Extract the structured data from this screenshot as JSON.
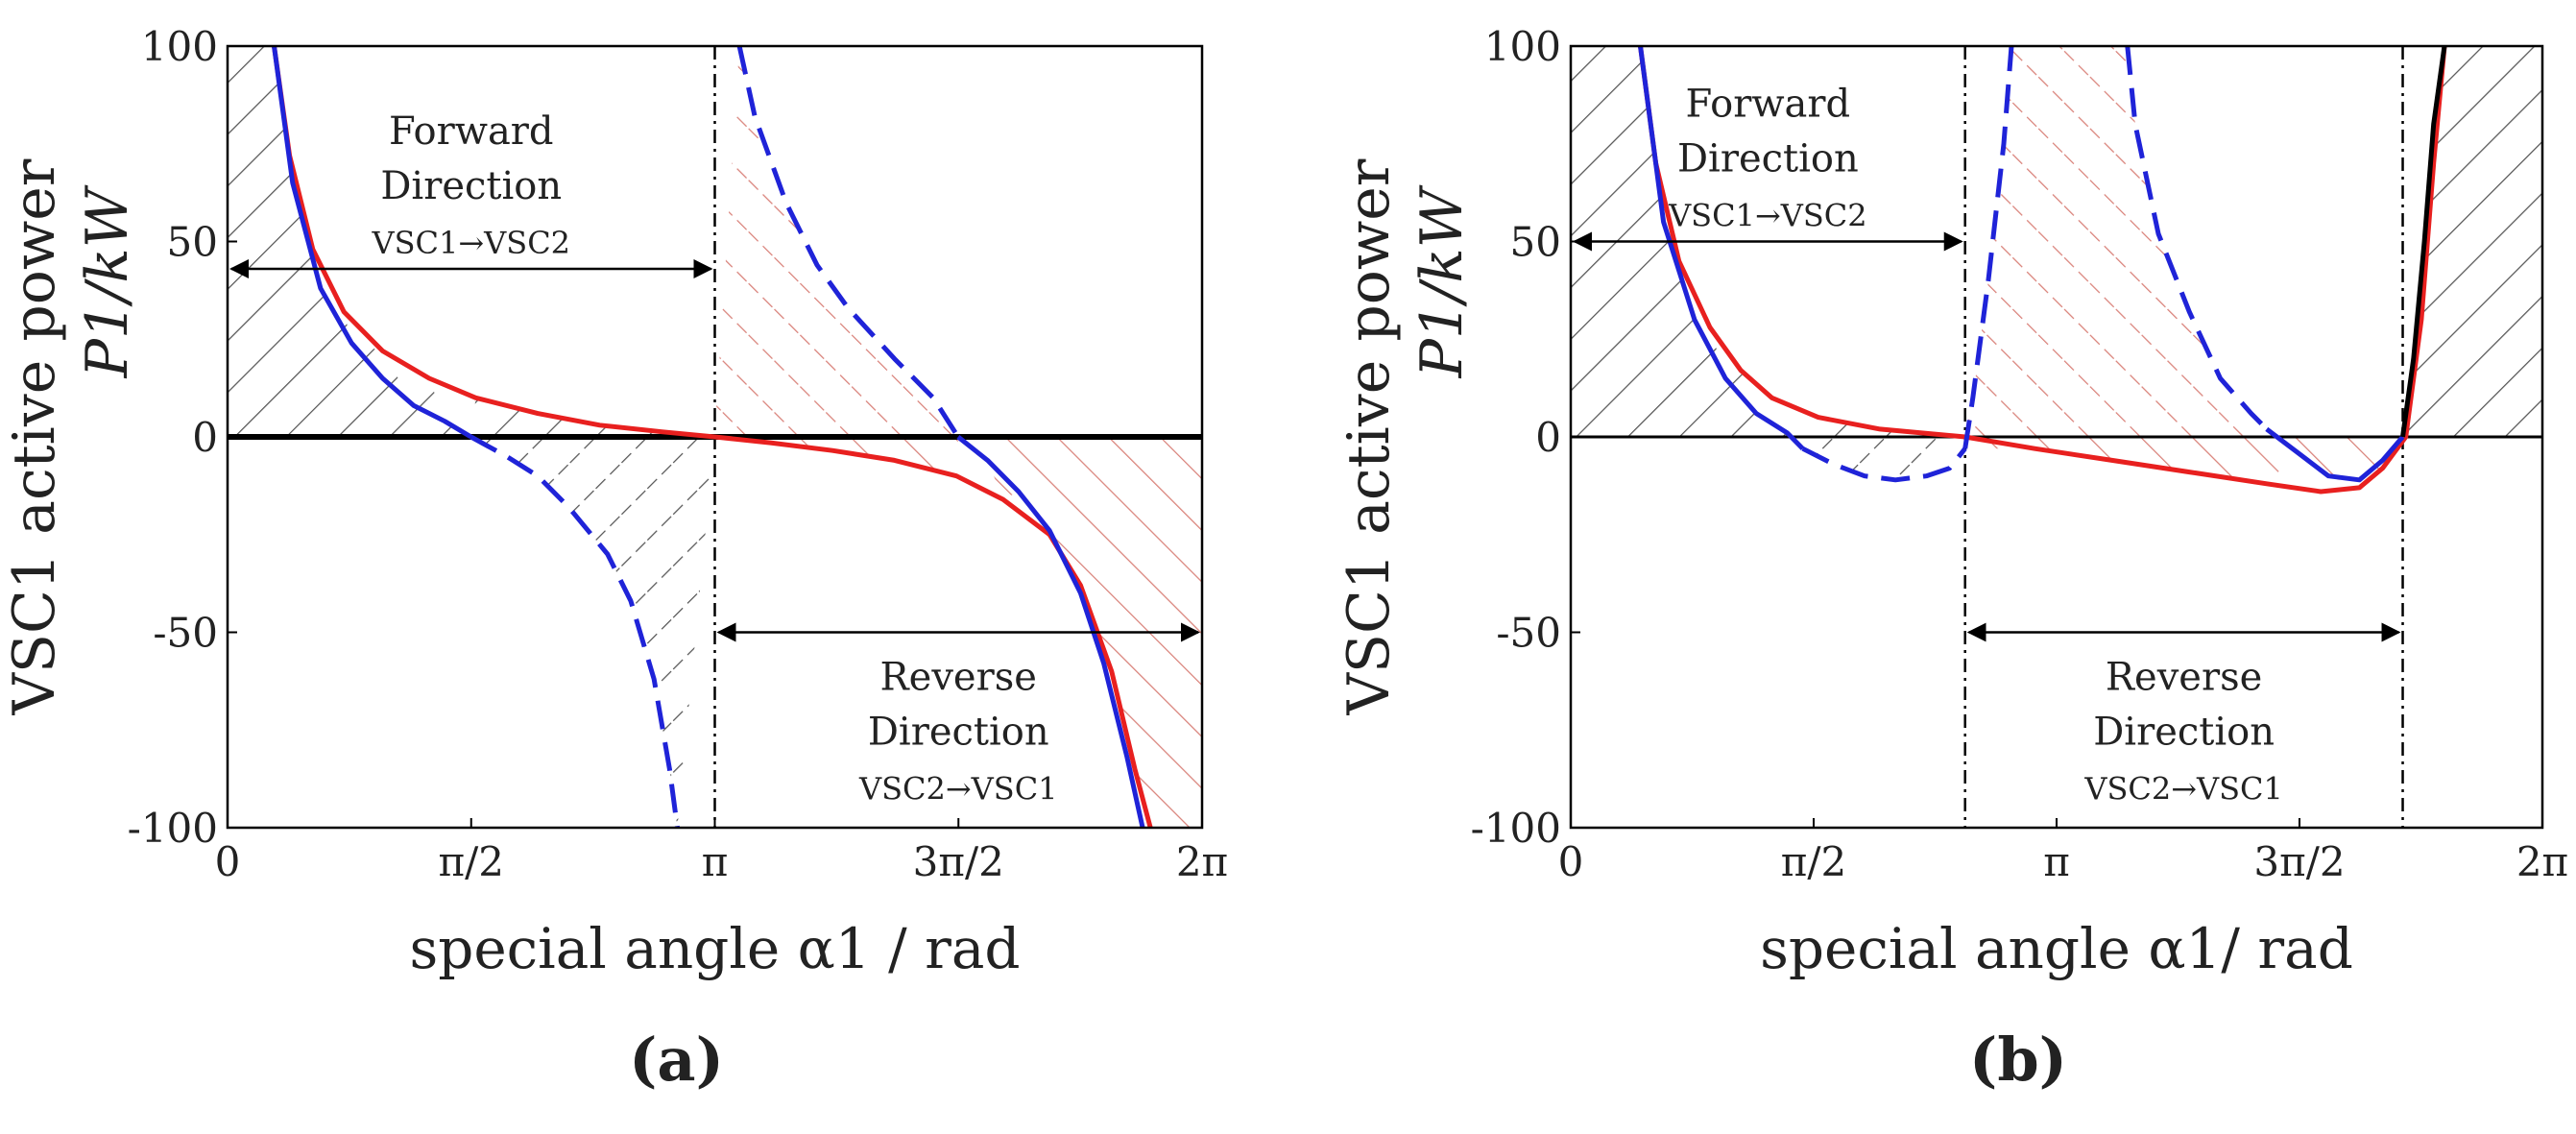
{
  "chart_data": [
    {
      "type": "area",
      "panel": "(a)",
      "xlabel": "special angle α1 / rad",
      "ylabel_line1": "VSC1 active power",
      "ylabel_line2": "P1/kW",
      "xlim": [
        0,
        6.2832
      ],
      "ylim": [
        -100,
        100
      ],
      "x_ticks": [
        "0",
        "π/2",
        "π",
        "3π/2",
        "2π"
      ],
      "y_ticks": [
        "100",
        "50",
        "0",
        "-50",
        "-100"
      ],
      "grid": false,
      "series": [
        {
          "color": "#e8201f",
          "style": "solid",
          "points": [
            [
              0.3,
              100
            ],
            [
              0.4,
              72
            ],
            [
              0.55,
              48
            ],
            [
              0.75,
              32
            ],
            [
              1.0,
              22
            ],
            [
              1.3,
              15
            ],
            [
              1.6,
              10
            ],
            [
              2.0,
              6
            ],
            [
              2.4,
              3
            ],
            [
              2.8,
              1.3
            ],
            [
              3.1416,
              0
            ],
            [
              3.5,
              -1.5
            ],
            [
              3.9,
              -3.5
            ],
            [
              4.3,
              -6
            ],
            [
              4.7,
              -10
            ],
            [
              5.0,
              -16
            ],
            [
              5.3,
              -25
            ],
            [
              5.5,
              -38
            ],
            [
              5.7,
              -60
            ],
            [
              5.85,
              -85
            ],
            [
              5.95,
              -100
            ]
          ]
        },
        {
          "color": "#1f23d8",
          "style": "solid",
          "points": [
            [
              0.3,
              100
            ],
            [
              0.42,
              65
            ],
            [
              0.6,
              38
            ],
            [
              0.8,
              24
            ],
            [
              1.0,
              15
            ],
            [
              1.2,
              8
            ],
            [
              1.4,
              4
            ],
            [
              1.57,
              0
            ]
          ]
        },
        {
          "color": "#1f23d8",
          "style": "dashed",
          "points": [
            [
              1.57,
              0
            ],
            [
              1.8,
              -5
            ],
            [
              2.0,
              -10
            ],
            [
              2.2,
              -18
            ],
            [
              2.45,
              -30
            ],
            [
              2.6,
              -42
            ],
            [
              2.75,
              -62
            ],
            [
              2.85,
              -85
            ],
            [
              2.9,
              -100
            ]
          ]
        },
        {
          "color": "#1f23d8",
          "style": "dashed",
          "points": [
            [
              3.3,
              100
            ],
            [
              3.4,
              82
            ],
            [
              3.6,
              60
            ],
            [
              3.8,
              44
            ],
            [
              4.0,
              33
            ],
            [
              4.3,
              20
            ],
            [
              4.55,
              10
            ],
            [
              4.71,
              0
            ]
          ]
        },
        {
          "color": "#1f23d8",
          "style": "solid",
          "points": [
            [
              4.71,
              0
            ],
            [
              4.9,
              -6
            ],
            [
              5.1,
              -14
            ],
            [
              5.3,
              -24
            ],
            [
              5.5,
              -40
            ],
            [
              5.65,
              -58
            ],
            [
              5.8,
              -82
            ],
            [
              5.9,
              -100
            ]
          ]
        }
      ],
      "hatched_regions": [
        {
          "color": "#555555",
          "style": "solid",
          "x_range": [
            0,
            3.1416
          ],
          "sign": "positive"
        },
        {
          "color": "#555555",
          "style": "dashed",
          "x_range": [
            1.57,
            3.1416
          ],
          "sign": "negative"
        },
        {
          "color": "#d9827a",
          "style": "dashed",
          "x_range": [
            3.1416,
            4.71
          ],
          "sign": "positive"
        },
        {
          "color": "#d9827a",
          "style": "solid",
          "x_range": [
            3.1416,
            6.2832
          ],
          "sign": "negative"
        }
      ],
      "vlines": [
        3.1416
      ],
      "annotations": [
        {
          "text_lines": [
            "Forward",
            "Direction",
            "VSC1→VSC2"
          ],
          "arrow_x": [
            0,
            3.1416
          ],
          "arrow_y": 43
        },
        {
          "text_lines": [
            "Reverse",
            "Direction",
            "VSC2→VSC1"
          ],
          "arrow_x": [
            3.1416,
            6.2832
          ],
          "arrow_y": -50
        }
      ]
    },
    {
      "type": "area",
      "panel": "(b)",
      "xlabel": "special angle α1/ rad",
      "ylabel_line1": "VSC1 active power",
      "ylabel_line2": "P1/kW",
      "xlim": [
        0,
        6.2832
      ],
      "ylim": [
        -100,
        100
      ],
      "x_ticks": [
        "0",
        "π/2",
        "π",
        "3π/2",
        "2π"
      ],
      "y_ticks": [
        "100",
        "50",
        "0",
        "-50",
        "-100"
      ],
      "grid": false,
      "series": [
        {
          "color": "#e8201f",
          "style": "solid",
          "points": [
            [
              0.45,
              100
            ],
            [
              0.55,
              70
            ],
            [
              0.7,
              45
            ],
            [
              0.9,
              28
            ],
            [
              1.1,
              17
            ],
            [
              1.3,
              10
            ],
            [
              1.6,
              5
            ],
            [
              2.0,
              2
            ],
            [
              2.55,
              0
            ],
            [
              3.0,
              -3
            ],
            [
              3.5,
              -6
            ],
            [
              4.0,
              -9
            ],
            [
              4.5,
              -12
            ],
            [
              4.85,
              -14
            ],
            [
              5.1,
              -13
            ],
            [
              5.25,
              -8
            ],
            [
              5.4,
              0
            ],
            [
              5.5,
              30
            ],
            [
              5.58,
              70
            ],
            [
              5.65,
              100
            ]
          ]
        },
        {
          "color": "#1f23d8",
          "style": "solid",
          "points": [
            [
              0.45,
              100
            ],
            [
              0.6,
              55
            ],
            [
              0.8,
              30
            ],
            [
              1.0,
              15
            ],
            [
              1.2,
              6
            ],
            [
              1.4,
              1
            ],
            [
              1.5,
              -3
            ]
          ]
        },
        {
          "color": "#1f23d8",
          "style": "dashed",
          "points": [
            [
              1.5,
              -3
            ],
            [
              1.7,
              -7
            ],
            [
              1.9,
              -10
            ],
            [
              2.1,
              -11
            ],
            [
              2.3,
              -10
            ],
            [
              2.45,
              -8
            ],
            [
              2.55,
              -3
            ]
          ]
        },
        {
          "color": "#1f23d8",
          "style": "dashed",
          "points": [
            [
              2.55,
              -3
            ],
            [
              2.6,
              10
            ],
            [
              2.7,
              40
            ],
            [
              2.8,
              75
            ],
            [
              2.85,
              100
            ]
          ]
        },
        {
          "color": "#1f23d8",
          "style": "dashed",
          "points": [
            [
              3.6,
              100
            ],
            [
              3.65,
              80
            ],
            [
              3.8,
              52
            ],
            [
              4.0,
              32
            ],
            [
              4.2,
              15
            ],
            [
              4.4,
              6
            ],
            [
              4.5,
              2
            ]
          ]
        },
        {
          "color": "#1f23d8",
          "style": "solid",
          "points": [
            [
              4.5,
              2
            ],
            [
              4.7,
              -4
            ],
            [
              4.9,
              -10
            ],
            [
              5.1,
              -11
            ],
            [
              5.25,
              -6
            ],
            [
              5.38,
              0
            ]
          ]
        },
        {
          "color": "#000000",
          "style": "solid",
          "points": [
            [
              5.38,
              0
            ],
            [
              5.45,
              20
            ],
            [
              5.52,
              50
            ],
            [
              5.58,
              80
            ],
            [
              5.65,
              100
            ]
          ]
        }
      ],
      "hatched_regions": [
        {
          "color": "#555555",
          "style": "solid",
          "x_range": [
            0,
            2.55
          ],
          "sign": "positive"
        },
        {
          "color": "#555555",
          "style": "dashed",
          "x_range": [
            1.5,
            2.55
          ],
          "sign": "negative"
        },
        {
          "color": "#d9827a",
          "style": "dashed",
          "x_range": [
            2.55,
            4.5
          ],
          "sign": "positive"
        },
        {
          "color": "#d9827a",
          "style": "solid",
          "x_range": [
            2.55,
            5.38
          ],
          "sign": "negative"
        },
        {
          "color": "#555555",
          "style": "solid",
          "x_range": [
            5.38,
            6.2832
          ],
          "sign": "positive"
        }
      ],
      "vlines": [
        2.55,
        5.38
      ],
      "annotations": [
        {
          "text_lines": [
            "Forward",
            "Direction",
            "VSC1→VSC2"
          ],
          "arrow_x": [
            0,
            2.55
          ],
          "arrow_y": 50
        },
        {
          "text_lines": [
            "Reverse",
            "Direction",
            "VSC2→VSC1"
          ],
          "arrow_x": [
            2.55,
            5.38
          ],
          "arrow_y": -50
        }
      ]
    }
  ]
}
